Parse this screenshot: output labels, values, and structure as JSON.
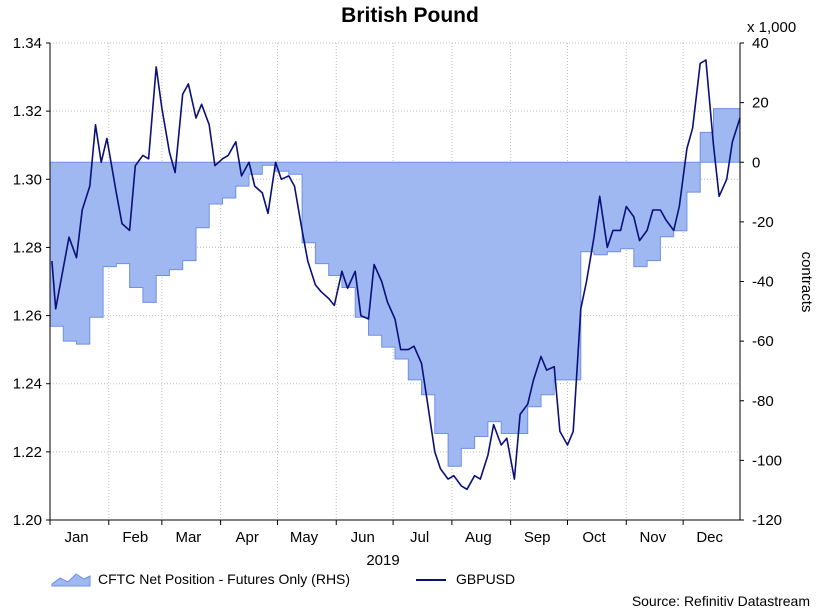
{
  "chart_data": {
    "type": "line",
    "title": "British Pound",
    "xlabel": "2019",
    "ylabel_left": "",
    "ylabel_right": "contracts",
    "right_axis_multiplier": "x 1,000",
    "source": "Source: Refinitiv Datastream",
    "x_tick_labels": [
      "Jan",
      "Feb",
      "Mar",
      "Apr",
      "May",
      "Jun",
      "Jul",
      "Aug",
      "Sep",
      "Oct",
      "Nov",
      "Dec"
    ],
    "left_axis": {
      "ylim": [
        1.2,
        1.34
      ],
      "ticks": [
        "1.20",
        "1.22",
        "1.24",
        "1.26",
        "1.28",
        "1.30",
        "1.32",
        "1.34"
      ]
    },
    "right_axis": {
      "ylim": [
        -120,
        40
      ],
      "ticks": [
        "-120",
        "-100",
        "-80",
        "-60",
        "-40",
        "-20",
        "0",
        "20",
        "40"
      ]
    },
    "grid": true,
    "legend": {
      "placement": "bottom",
      "items": [
        "CFTC Net Position - Futures Only (RHS)",
        "GBPUSD"
      ]
    },
    "colors": {
      "area_fill": "#9fb8f2",
      "area_edge": "#6f8fe6",
      "line": "#0a1078",
      "grid": "#bfbfbf"
    },
    "series": [
      {
        "name": "CFTC Net Position - Futures Only (RHS)",
        "kind": "area",
        "axis": "right",
        "x": [
          "2019-01-01",
          "2019-01-08",
          "2019-01-15",
          "2019-01-22",
          "2019-01-29",
          "2019-02-05",
          "2019-02-12",
          "2019-02-19",
          "2019-02-26",
          "2019-03-05",
          "2019-03-12",
          "2019-03-19",
          "2019-03-26",
          "2019-04-02",
          "2019-04-09",
          "2019-04-16",
          "2019-04-23",
          "2019-04-30",
          "2019-05-07",
          "2019-05-14",
          "2019-05-21",
          "2019-05-28",
          "2019-06-04",
          "2019-06-11",
          "2019-06-18",
          "2019-06-25",
          "2019-07-02",
          "2019-07-09",
          "2019-07-16",
          "2019-07-23",
          "2019-07-30",
          "2019-08-06",
          "2019-08-13",
          "2019-08-20",
          "2019-08-27",
          "2019-09-03",
          "2019-09-10",
          "2019-09-17",
          "2019-09-24",
          "2019-10-01",
          "2019-10-08",
          "2019-10-15",
          "2019-10-22",
          "2019-10-29",
          "2019-11-05",
          "2019-11-12",
          "2019-11-19",
          "2019-11-26",
          "2019-12-03",
          "2019-12-10",
          "2019-12-17",
          "2019-12-24",
          "2019-12-31"
        ],
        "values": [
          -55,
          -60,
          -61,
          -52,
          -35,
          -34,
          -42,
          -47,
          -38,
          -36,
          -33,
          -22,
          -14,
          -12,
          -8,
          -4,
          -1,
          -3,
          -4,
          -27,
          -34,
          -38,
          -42,
          -52,
          -58,
          -62,
          -66,
          -73,
          -78,
          -91,
          -102,
          -96,
          -92,
          -87,
          -91,
          -91,
          -82,
          -78,
          -73,
          -73,
          -30,
          -31,
          -30,
          -29,
          -35,
          -33,
          -25,
          -23,
          -10,
          10,
          18,
          18,
          32
        ]
      },
      {
        "name": "GBPUSD",
        "kind": "line",
        "axis": "left",
        "x": [
          "2019-01-02",
          "2019-01-04",
          "2019-01-08",
          "2019-01-11",
          "2019-01-15",
          "2019-01-18",
          "2019-01-22",
          "2019-01-25",
          "2019-01-28",
          "2019-01-31",
          "2019-02-05",
          "2019-02-08",
          "2019-02-12",
          "2019-02-15",
          "2019-02-19",
          "2019-02-22",
          "2019-02-26",
          "2019-03-01",
          "2019-03-05",
          "2019-03-08",
          "2019-03-12",
          "2019-03-15",
          "2019-03-19",
          "2019-03-22",
          "2019-03-26",
          "2019-03-29",
          "2019-04-02",
          "2019-04-05",
          "2019-04-09",
          "2019-04-12",
          "2019-04-16",
          "2019-04-19",
          "2019-04-23",
          "2019-04-26",
          "2019-04-30",
          "2019-05-03",
          "2019-05-07",
          "2019-05-10",
          "2019-05-14",
          "2019-05-17",
          "2019-05-21",
          "2019-05-24",
          "2019-05-28",
          "2019-05-31",
          "2019-06-04",
          "2019-06-07",
          "2019-06-11",
          "2019-06-14",
          "2019-06-18",
          "2019-06-21",
          "2019-06-25",
          "2019-06-28",
          "2019-07-02",
          "2019-07-05",
          "2019-07-09",
          "2019-07-12",
          "2019-07-16",
          "2019-07-19",
          "2019-07-23",
          "2019-07-26",
          "2019-07-30",
          "2019-08-02",
          "2019-08-06",
          "2019-08-09",
          "2019-08-13",
          "2019-08-16",
          "2019-08-20",
          "2019-08-23",
          "2019-08-27",
          "2019-08-30",
          "2019-09-03",
          "2019-09-06",
          "2019-09-10",
          "2019-09-13",
          "2019-09-17",
          "2019-09-20",
          "2019-09-24",
          "2019-09-27",
          "2019-10-01",
          "2019-10-04",
          "2019-10-08",
          "2019-10-11",
          "2019-10-15",
          "2019-10-18",
          "2019-10-22",
          "2019-10-25",
          "2019-10-29",
          "2019-11-01",
          "2019-11-05",
          "2019-11-08",
          "2019-11-12",
          "2019-11-15",
          "2019-11-19",
          "2019-11-22",
          "2019-11-26",
          "2019-11-29",
          "2019-12-03",
          "2019-12-06",
          "2019-12-10",
          "2019-12-13",
          "2019-12-17",
          "2019-12-20",
          "2019-12-24",
          "2019-12-27",
          "2019-12-31"
        ],
        "values": [
          1.276,
          1.262,
          1.274,
          1.283,
          1.277,
          1.291,
          1.298,
          1.316,
          1.305,
          1.312,
          1.296,
          1.287,
          1.285,
          1.304,
          1.307,
          1.306,
          1.333,
          1.321,
          1.308,
          1.302,
          1.325,
          1.328,
          1.318,
          1.322,
          1.316,
          1.304,
          1.306,
          1.307,
          1.311,
          1.301,
          1.305,
          1.298,
          1.296,
          1.29,
          1.305,
          1.3,
          1.301,
          1.298,
          1.285,
          1.276,
          1.269,
          1.267,
          1.265,
          1.263,
          1.273,
          1.268,
          1.273,
          1.26,
          1.259,
          1.275,
          1.27,
          1.264,
          1.259,
          1.25,
          1.25,
          1.251,
          1.246,
          1.235,
          1.22,
          1.215,
          1.212,
          1.213,
          1.21,
          1.209,
          1.213,
          1.212,
          1.219,
          1.228,
          1.222,
          1.224,
          1.212,
          1.231,
          1.234,
          1.241,
          1.248,
          1.244,
          1.245,
          1.226,
          1.222,
          1.226,
          1.262,
          1.27,
          1.283,
          1.295,
          1.28,
          1.285,
          1.285,
          1.292,
          1.289,
          1.282,
          1.285,
          1.291,
          1.291,
          1.288,
          1.285,
          1.292,
          1.309,
          1.315,
          1.334,
          1.335,
          1.31,
          1.295,
          1.3,
          1.311,
          1.318
        ]
      }
    ]
  }
}
